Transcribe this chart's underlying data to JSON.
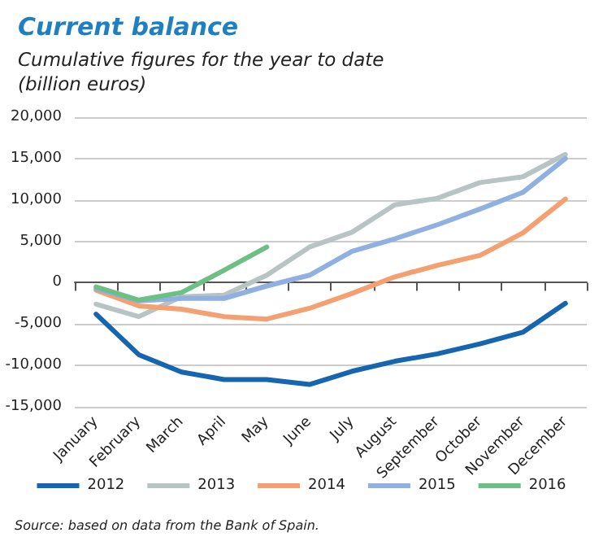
{
  "chart_data": {
    "type": "line",
    "title": "Current balance",
    "subtitle": "Cumulative figures for the year to date\n(billion euros)",
    "categories": [
      "January",
      "February",
      "March",
      "April",
      "May",
      "June",
      "July",
      "August",
      "September",
      "October",
      "November",
      "December"
    ],
    "series": [
      {
        "name": "2012",
        "color": "#1565b0",
        "values": [
          -3800,
          -8700,
          -10800,
          -11700,
          -11700,
          -12300,
          -10700,
          -9500,
          -8600,
          -7400,
          -6000,
          -2500
        ]
      },
      {
        "name": "2013",
        "color": "#b8c4c4",
        "values": [
          -2600,
          -4100,
          -1700,
          -1500,
          900,
          4300,
          6100,
          9400,
          10200,
          12100,
          12800,
          15500
        ]
      },
      {
        "name": "2014",
        "color": "#f4a070",
        "values": [
          -900,
          -2800,
          -3200,
          -4100,
          -4400,
          -3100,
          -1300,
          700,
          2100,
          3300,
          6000,
          10100
        ]
      },
      {
        "name": "2015",
        "color": "#8fb0e0",
        "values": [
          -700,
          -2200,
          -1900,
          -1900,
          -400,
          900,
          3800,
          5300,
          7000,
          8900,
          10900,
          15000
        ]
      },
      {
        "name": "2016",
        "color": "#6cc085",
        "values": [
          -500,
          -2100,
          -1200,
          1500,
          4300,
          null,
          null,
          null,
          null,
          null,
          null,
          null
        ]
      }
    ],
    "ylim": [
      -15000,
      20000
    ],
    "yticks": [
      {
        "value": -15000,
        "label": "-15,000"
      },
      {
        "value": -10000,
        "label": "-10,000"
      },
      {
        "value": -5000,
        "label": "-5,000"
      },
      0,
      {
        "value": 5000,
        "label": "5,000"
      },
      {
        "value": 10000,
        "label": "10,000"
      },
      {
        "value": 15000,
        "label": "15,000"
      },
      {
        "value": 20000,
        "label": "20,000"
      }
    ],
    "grid": "y",
    "legend": "bottom",
    "marker": "none",
    "line_style": "solid",
    "annotations": [
      "Source: based on data from the Bank of Spain."
    ]
  }
}
